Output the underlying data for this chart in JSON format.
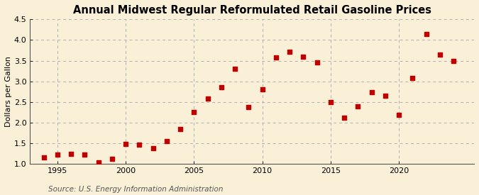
{
  "title": "Annual Midwest Regular Reformulated Retail Gasoline Prices",
  "ylabel": "Dollars per Gallon",
  "source": "Source: U.S. Energy Information Administration",
  "background_color": "#faf0d7",
  "xlim": [
    1993.0,
    2025.5
  ],
  "ylim": [
    1.0,
    4.5
  ],
  "yticks": [
    1.0,
    1.5,
    2.0,
    2.5,
    3.0,
    3.5,
    4.0,
    4.5
  ],
  "xticks": [
    1995,
    2000,
    2005,
    2010,
    2015,
    2020
  ],
  "years": [
    1994,
    1995,
    1996,
    1997,
    1998,
    1999,
    2000,
    2001,
    2002,
    2003,
    2004,
    2005,
    2006,
    2007,
    2008,
    2009,
    2010,
    2011,
    2012,
    2013,
    2014,
    2015,
    2016,
    2017,
    2018,
    2019,
    2020,
    2021,
    2022,
    2023,
    2024
  ],
  "prices": [
    1.15,
    1.23,
    1.25,
    1.22,
    1.04,
    1.12,
    1.49,
    1.47,
    1.38,
    1.56,
    1.85,
    2.25,
    2.58,
    2.85,
    3.31,
    2.37,
    2.81,
    3.57,
    3.72,
    3.6,
    3.45,
    2.5,
    2.12,
    2.4,
    2.73,
    2.65,
    2.19,
    3.08,
    4.15,
    3.65,
    3.49
  ],
  "marker_color": "#c00000",
  "marker_size": 18,
  "grid_color": "#b0b0b0",
  "title_fontsize": 10.5,
  "label_fontsize": 8,
  "tick_fontsize": 8,
  "source_fontsize": 7.5
}
